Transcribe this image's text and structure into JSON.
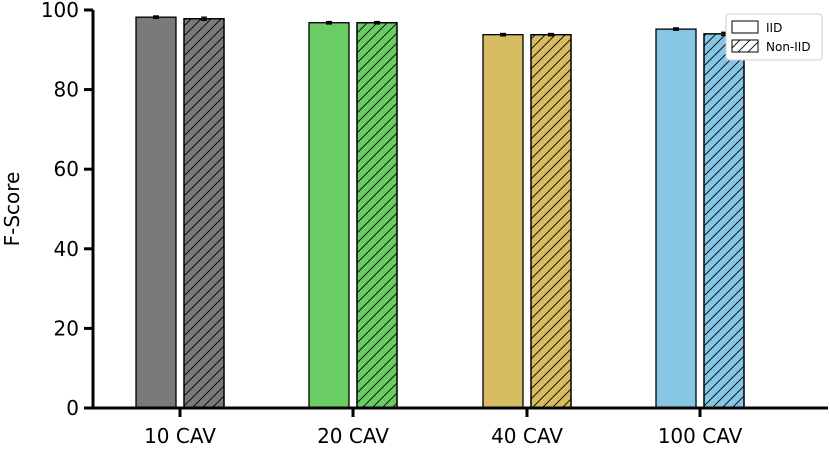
{
  "chart_data": {
    "type": "bar",
    "ylabel": "F-Score",
    "ylim": [
      0,
      100
    ],
    "yticks": [
      0,
      20,
      40,
      60,
      80,
      100
    ],
    "categories": [
      "10 CAV",
      "20 CAV",
      "40 CAV",
      "100 CAV"
    ],
    "category_colors": [
      "#7a7a7a",
      "#6acd64",
      "#d8bc62",
      "#84c6e3"
    ],
    "series": [
      {
        "name": "IID",
        "pattern": "solid",
        "values": [
          98.2,
          96.8,
          93.8,
          95.2
        ],
        "errors": [
          0.3,
          0.3,
          0.3,
          0.3
        ]
      },
      {
        "name": "Non-IID",
        "pattern": "hatched",
        "values": [
          97.8,
          96.8,
          93.8,
          94.0
        ],
        "errors": [
          0.4,
          0.3,
          0.3,
          0.4
        ]
      }
    ],
    "grid": false,
    "legend_position": "top-right"
  }
}
